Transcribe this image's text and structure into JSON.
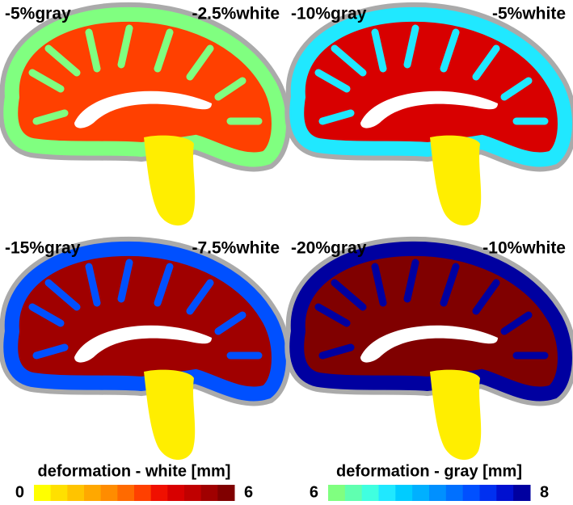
{
  "panels": [
    {
      "gray_label": "-5%gray",
      "white_label": "-2.5%white"
    },
    {
      "gray_label": "-10%gray",
      "white_label": "-5%white"
    },
    {
      "gray_label": "-15%gray",
      "white_label": "-7.5%white"
    },
    {
      "gray_label": "-20%gray",
      "white_label": "-10%white"
    }
  ],
  "colorbars": [
    {
      "title": "deformation - white [mm]",
      "min": 0,
      "max": 6,
      "colors": [
        "#ffff00",
        "#ffe000",
        "#ffc400",
        "#ffa800",
        "#ff8c00",
        "#ff6a00",
        "#ff4000",
        "#f01000",
        "#d80000",
        "#c00000",
        "#a00000",
        "#800000"
      ]
    },
    {
      "title": "deformation - gray [mm]",
      "min": 6,
      "max": 8,
      "colors": [
        "#80ff80",
        "#60ffb0",
        "#40ffe0",
        "#20e8ff",
        "#00ccff",
        "#00b0ff",
        "#0090ff",
        "#0070ff",
        "#0050ff",
        "#0030f0",
        "#0010d0",
        "#0000a0"
      ]
    }
  ]
}
